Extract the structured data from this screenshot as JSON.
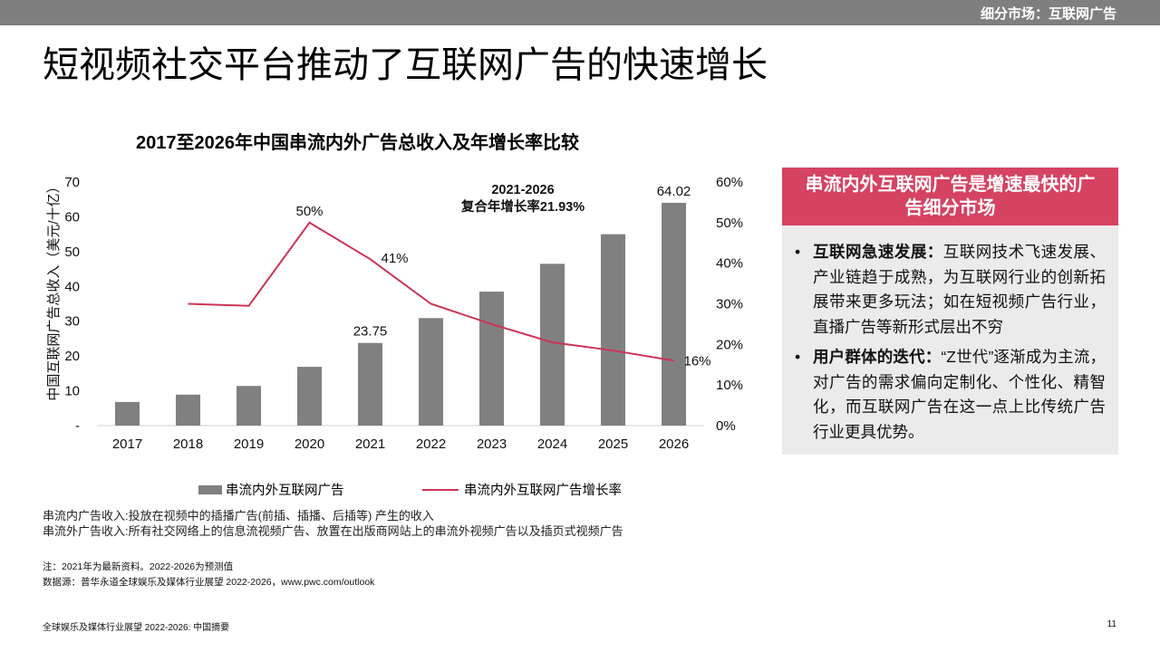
{
  "header": {
    "section_label": "细分市场：互联网广告",
    "page_title": "短视频社交平台推动了互联网广告的快速增长"
  },
  "chart_title": "2017至2026年中国串流内外广告总收入及年增长率比较",
  "chart_data": {
    "type": "bar+line",
    "title": "2017至2026年中国串流内外广告总收入及年增长率比较",
    "categories": [
      "2017",
      "2018",
      "2019",
      "2020",
      "2021",
      "2022",
      "2023",
      "2024",
      "2025",
      "2026"
    ],
    "series": [
      {
        "name": "串流内外互联网广告",
        "type": "bar",
        "axis": "left",
        "color": "#808080",
        "values": [
          6.8,
          8.9,
          11.4,
          16.9,
          23.75,
          30.9,
          38.5,
          46.5,
          55.0,
          64.02
        ]
      },
      {
        "name": "串流内外互联网广告增长率",
        "type": "line",
        "axis": "right",
        "color": "#cc3355",
        "values": [
          null,
          30,
          29.5,
          50,
          41,
          30,
          25,
          20.5,
          18.5,
          16
        ]
      }
    ],
    "bar_labels": [
      {
        "index": 4,
        "text": "23.75"
      },
      {
        "index": 9,
        "text": "64.02"
      }
    ],
    "line_labels": [
      {
        "index": 3,
        "text": "50%"
      },
      {
        "index": 4,
        "text": "41%"
      },
      {
        "index": 9,
        "text": "16%"
      }
    ],
    "y_left": {
      "label": "中国互联网广告总收入（美元/十亿）",
      "min": 0,
      "max": 70,
      "ticks": [
        "-",
        "10",
        "20",
        "30",
        "40",
        "50",
        "60",
        "70"
      ]
    },
    "y_right": {
      "min": 0,
      "max": 60,
      "ticks": [
        "0%",
        "10%",
        "20%",
        "30%",
        "40%",
        "50%",
        "60%"
      ]
    },
    "annotation": {
      "line1": "2021-2026",
      "line2": "复合年增长率21.93%"
    },
    "grid": false,
    "legend_position": "bottom"
  },
  "legend": {
    "bar_label": "串流内外互联网广告",
    "line_label": "串流内外互联网广告增长率"
  },
  "definitions": [
    "串流内广告收入:投放在视频中的插播广告(前插、插播、后插等) 产生的收入",
    "串流外广告收入:所有社交网络上的信息流视频广告、放置在出版商网站上的串流外视频广告以及插页式视频广告"
  ],
  "notes": [
    "注：2021年为最新资料。2022-2026为预测值",
    "数据源：普华永道全球娱乐及媒体行业展望 2022-2026，www.pwc.com/outlook"
  ],
  "panel": {
    "header": "串流内外互联网广告是增速最快的广告细分市场",
    "items": [
      {
        "bullet": "•",
        "lead": "互联网急速发展：",
        "text": "互联网技术飞速发展、产业链趋于成熟，为互联网行业的创新拓展带来更多玩法；如在短视频广告行业，直播广告等新形式层出不穷"
      },
      {
        "bullet": "•",
        "lead": "用户群体的迭代：",
        "text": "“Z世代”逐渐成为主流，对广告的需求偏向定制化、个性化、精智化，而互联网广告在这一点上比传统广告行业更具优势。"
      }
    ]
  },
  "footer": {
    "left": "全球娱乐及媒体行业展望 2022-2026: 中国摘要",
    "page_number": "11"
  }
}
